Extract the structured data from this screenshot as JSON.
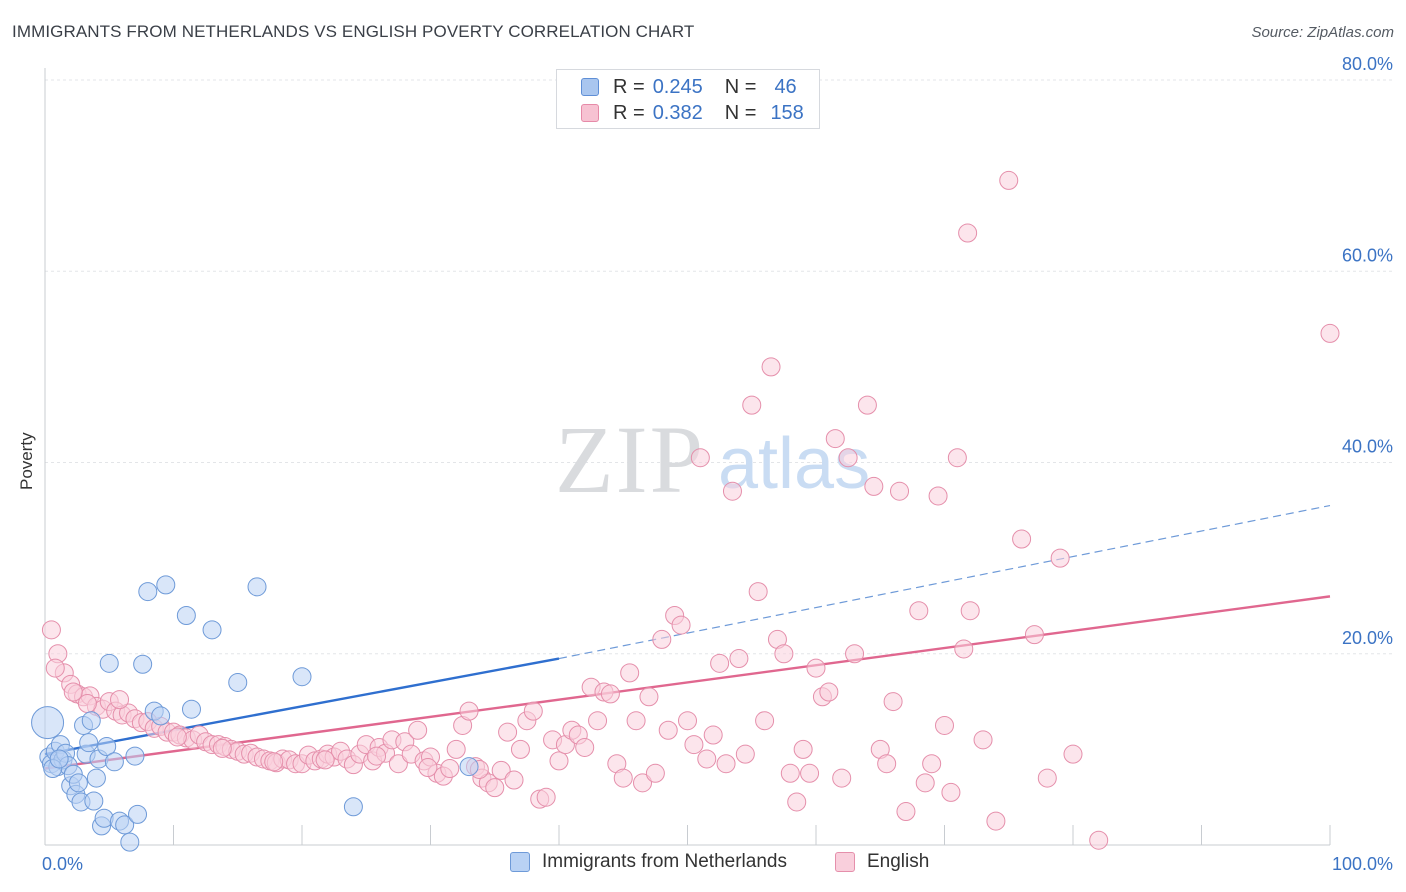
{
  "header": {
    "title": "IMMIGRANTS FROM NETHERLANDS VS ENGLISH POVERTY CORRELATION CHART",
    "source": "Source: ZipAtlas.com"
  },
  "watermark": {
    "zip": "ZIP",
    "atlas": "atlas"
  },
  "legend_top": {
    "rows": [
      {
        "r_label": "R =",
        "r_value": "0.245",
        "n_label": "N =",
        "n_value": "46",
        "color": "#a9c6ef",
        "border": "#5f8fd6"
      },
      {
        "r_label": "R =",
        "r_value": "0.382",
        "n_label": "N =",
        "n_value": "158",
        "color": "#f7c2d2",
        "border": "#e68aa8"
      }
    ]
  },
  "legend_bottom": {
    "items": [
      {
        "label": "Immigrants from Netherlands",
        "color": "#b9d2f4",
        "border": "#6e9ad8"
      },
      {
        "label": "English",
        "color": "#f9cfdc",
        "border": "#e58fab"
      }
    ]
  },
  "chart_data": {
    "type": "scatter",
    "xlabel": "",
    "ylabel": "Poverty",
    "xlim": [
      0,
      100
    ],
    "ylim": [
      0,
      80
    ],
    "x_tick_labels": {
      "left": "0.0%",
      "right": "100.0%"
    },
    "y_ticks": [
      {
        "value": 20,
        "label": "20.0%"
      },
      {
        "value": 40,
        "label": "40.0%"
      },
      {
        "value": 60,
        "label": "60.0%"
      },
      {
        "value": 80,
        "label": "80.0%"
      }
    ],
    "grid": true,
    "legend_placement": "top-center",
    "series": [
      {
        "name": "Immigrants from Netherlands",
        "color": "#6e9ad8",
        "fill": "#b9d2f4",
        "trend": {
          "x": [
            0,
            40
          ],
          "y": [
            9.5,
            19.5
          ],
          "color": "#2f6fcf"
        },
        "trend_extension": {
          "x": [
            40,
            100
          ],
          "y": [
            19.5,
            35.5
          ]
        },
        "points": [
          [
            0.2,
            12.8
          ],
          [
            0.3,
            9.2
          ],
          [
            0.5,
            8.5
          ],
          [
            0.8,
            9.8
          ],
          [
            1.0,
            8.2
          ],
          [
            1.2,
            10.5
          ],
          [
            1.4,
            8.9
          ],
          [
            1.6,
            9.6
          ],
          [
            1.8,
            8.3
          ],
          [
            2.0,
            6.2
          ],
          [
            2.2,
            7.4
          ],
          [
            2.4,
            5.3
          ],
          [
            2.6,
            6.5
          ],
          [
            2.8,
            4.5
          ],
          [
            3.0,
            12.5
          ],
          [
            3.2,
            9.5
          ],
          [
            3.4,
            10.7
          ],
          [
            3.6,
            13.0
          ],
          [
            3.8,
            4.6
          ],
          [
            4.0,
            7.0
          ],
          [
            4.2,
            9.0
          ],
          [
            4.4,
            2.0
          ],
          [
            4.6,
            2.8
          ],
          [
            4.8,
            10.3
          ],
          [
            5.0,
            19.0
          ],
          [
            5.4,
            8.7
          ],
          [
            5.8,
            2.5
          ],
          [
            6.2,
            2.1
          ],
          [
            6.6,
            0.3
          ],
          [
            7.0,
            9.3
          ],
          [
            7.2,
            3.2
          ],
          [
            7.6,
            18.9
          ],
          [
            8.0,
            26.5
          ],
          [
            8.5,
            14.0
          ],
          [
            9.0,
            13.5
          ],
          [
            9.4,
            27.2
          ],
          [
            11.0,
            24.0
          ],
          [
            11.4,
            14.2
          ],
          [
            13.0,
            22.5
          ],
          [
            15.0,
            17.0
          ],
          [
            16.5,
            27.0
          ],
          [
            20.0,
            17.6
          ],
          [
            24.0,
            4.0
          ],
          [
            33.0,
            8.2
          ],
          [
            0.6,
            8.0
          ],
          [
            1.1,
            9.0
          ]
        ]
      },
      {
        "name": "English",
        "color": "#e58fab",
        "fill": "#f9cfdc",
        "trend": {
          "x": [
            0,
            100
          ],
          "y": [
            8.0,
            26.0
          ],
          "color": "#e0678f"
        },
        "points": [
          [
            0.5,
            22.5
          ],
          [
            1.0,
            20.0
          ],
          [
            1.5,
            18.0
          ],
          [
            2.0,
            16.8
          ],
          [
            2.5,
            15.8
          ],
          [
            3.0,
            15.5
          ],
          [
            3.5,
            15.6
          ],
          [
            4.0,
            14.5
          ],
          [
            4.5,
            14.2
          ],
          [
            5.0,
            15.0
          ],
          [
            5.5,
            14.0
          ],
          [
            6.0,
            13.6
          ],
          [
            6.5,
            13.8
          ],
          [
            7.0,
            13.2
          ],
          [
            7.5,
            12.8
          ],
          [
            8.0,
            12.9
          ],
          [
            8.5,
            12.2
          ],
          [
            9.0,
            12.4
          ],
          [
            9.5,
            11.8
          ],
          [
            10.0,
            11.8
          ],
          [
            10.5,
            11.5
          ],
          [
            11.0,
            11.2
          ],
          [
            11.5,
            11.0
          ],
          [
            12.0,
            11.5
          ],
          [
            12.5,
            10.8
          ],
          [
            13.0,
            10.5
          ],
          [
            13.5,
            10.5
          ],
          [
            14.0,
            10.3
          ],
          [
            14.5,
            10.0
          ],
          [
            15.0,
            9.8
          ],
          [
            15.5,
            9.5
          ],
          [
            16.0,
            9.6
          ],
          [
            16.5,
            9.2
          ],
          [
            17.0,
            9.0
          ],
          [
            17.5,
            8.8
          ],
          [
            18.0,
            8.6
          ],
          [
            18.5,
            9.0
          ],
          [
            19.0,
            8.9
          ],
          [
            19.5,
            8.5
          ],
          [
            20.0,
            8.5
          ],
          [
            20.5,
            9.4
          ],
          [
            21.0,
            8.8
          ],
          [
            21.5,
            9.0
          ],
          [
            22.0,
            9.5
          ],
          [
            22.5,
            9.2
          ],
          [
            23.0,
            9.8
          ],
          [
            23.5,
            9.0
          ],
          [
            24.0,
            8.4
          ],
          [
            24.5,
            9.5
          ],
          [
            25.0,
            10.5
          ],
          [
            25.5,
            8.8
          ],
          [
            26.0,
            10.2
          ],
          [
            26.5,
            9.6
          ],
          [
            27.0,
            11.0
          ],
          [
            27.5,
            8.5
          ],
          [
            28.0,
            10.8
          ],
          [
            28.5,
            9.5
          ],
          [
            29.0,
            12.0
          ],
          [
            29.5,
            8.8
          ],
          [
            30.0,
            9.2
          ],
          [
            30.5,
            7.5
          ],
          [
            31.0,
            7.2
          ],
          [
            31.5,
            8.0
          ],
          [
            32.0,
            10.0
          ],
          [
            32.5,
            12.5
          ],
          [
            33.0,
            14.0
          ],
          [
            33.5,
            8.2
          ],
          [
            34.0,
            7.0
          ],
          [
            34.5,
            6.5
          ],
          [
            35.0,
            6.0
          ],
          [
            35.5,
            7.8
          ],
          [
            36.0,
            11.8
          ],
          [
            36.5,
            6.8
          ],
          [
            37.0,
            10.0
          ],
          [
            37.5,
            13.0
          ],
          [
            38.0,
            14.0
          ],
          [
            38.5,
            4.8
          ],
          [
            39.0,
            5.0
          ],
          [
            39.5,
            11.0
          ],
          [
            40.0,
            8.8
          ],
          [
            40.5,
            10.5
          ],
          [
            41.0,
            12.0
          ],
          [
            41.5,
            11.5
          ],
          [
            42.0,
            10.2
          ],
          [
            42.5,
            16.5
          ],
          [
            43.0,
            13.0
          ],
          [
            43.5,
            16.0
          ],
          [
            44.0,
            15.8
          ],
          [
            44.5,
            8.5
          ],
          [
            45.0,
            7.0
          ],
          [
            45.5,
            18.0
          ],
          [
            46.0,
            13.0
          ],
          [
            46.5,
            6.5
          ],
          [
            47.0,
            15.5
          ],
          [
            47.5,
            7.5
          ],
          [
            48.0,
            21.5
          ],
          [
            48.5,
            12.0
          ],
          [
            49.0,
            24.0
          ],
          [
            49.5,
            23.0
          ],
          [
            50.0,
            13.0
          ],
          [
            50.5,
            10.5
          ],
          [
            51.0,
            40.5
          ],
          [
            51.5,
            9.0
          ],
          [
            52.0,
            11.5
          ],
          [
            52.5,
            19.0
          ],
          [
            53.0,
            8.5
          ],
          [
            53.5,
            37.0
          ],
          [
            54.0,
            19.5
          ],
          [
            54.5,
            9.5
          ],
          [
            55.0,
            46.0
          ],
          [
            55.5,
            26.5
          ],
          [
            56.0,
            13.0
          ],
          [
            56.5,
            50.0
          ],
          [
            57.0,
            21.5
          ],
          [
            57.5,
            20.0
          ],
          [
            58.0,
            7.5
          ],
          [
            58.5,
            4.5
          ],
          [
            59.0,
            10.0
          ],
          [
            59.5,
            7.5
          ],
          [
            60.0,
            18.5
          ],
          [
            60.5,
            15.5
          ],
          [
            61.0,
            16.0
          ],
          [
            61.5,
            42.5
          ],
          [
            62.0,
            7.0
          ],
          [
            62.5,
            40.5
          ],
          [
            63.0,
            20.0
          ],
          [
            64.0,
            46.0
          ],
          [
            64.5,
            37.5
          ],
          [
            65.0,
            10.0
          ],
          [
            65.5,
            8.5
          ],
          [
            66.0,
            15.0
          ],
          [
            66.5,
            37.0
          ],
          [
            67.0,
            3.5
          ],
          [
            68.0,
            24.5
          ],
          [
            68.5,
            6.5
          ],
          [
            69.0,
            8.5
          ],
          [
            69.5,
            36.5
          ],
          [
            70.0,
            12.5
          ],
          [
            70.5,
            5.5
          ],
          [
            71.0,
            40.5
          ],
          [
            71.5,
            20.5
          ],
          [
            72.0,
            24.5
          ],
          [
            73.0,
            11.0
          ],
          [
            74.0,
            2.5
          ],
          [
            75.0,
            69.5
          ],
          [
            76.0,
            32.0
          ],
          [
            77.0,
            22.0
          ],
          [
            78.0,
            7.0
          ],
          [
            79.0,
            30.0
          ],
          [
            80.0,
            9.5
          ],
          [
            82.0,
            0.5
          ],
          [
            71.8,
            64.0
          ],
          [
            100.0,
            53.5
          ],
          [
            0.8,
            18.5
          ],
          [
            2.2,
            16.0
          ],
          [
            3.3,
            14.8
          ],
          [
            5.8,
            15.2
          ],
          [
            10.3,
            11.3
          ],
          [
            13.8,
            10.1
          ],
          [
            17.8,
            8.7
          ],
          [
            21.8,
            8.9
          ],
          [
            25.8,
            9.3
          ],
          [
            29.8,
            8.1
          ],
          [
            33.8,
            7.9
          ]
        ]
      }
    ]
  }
}
